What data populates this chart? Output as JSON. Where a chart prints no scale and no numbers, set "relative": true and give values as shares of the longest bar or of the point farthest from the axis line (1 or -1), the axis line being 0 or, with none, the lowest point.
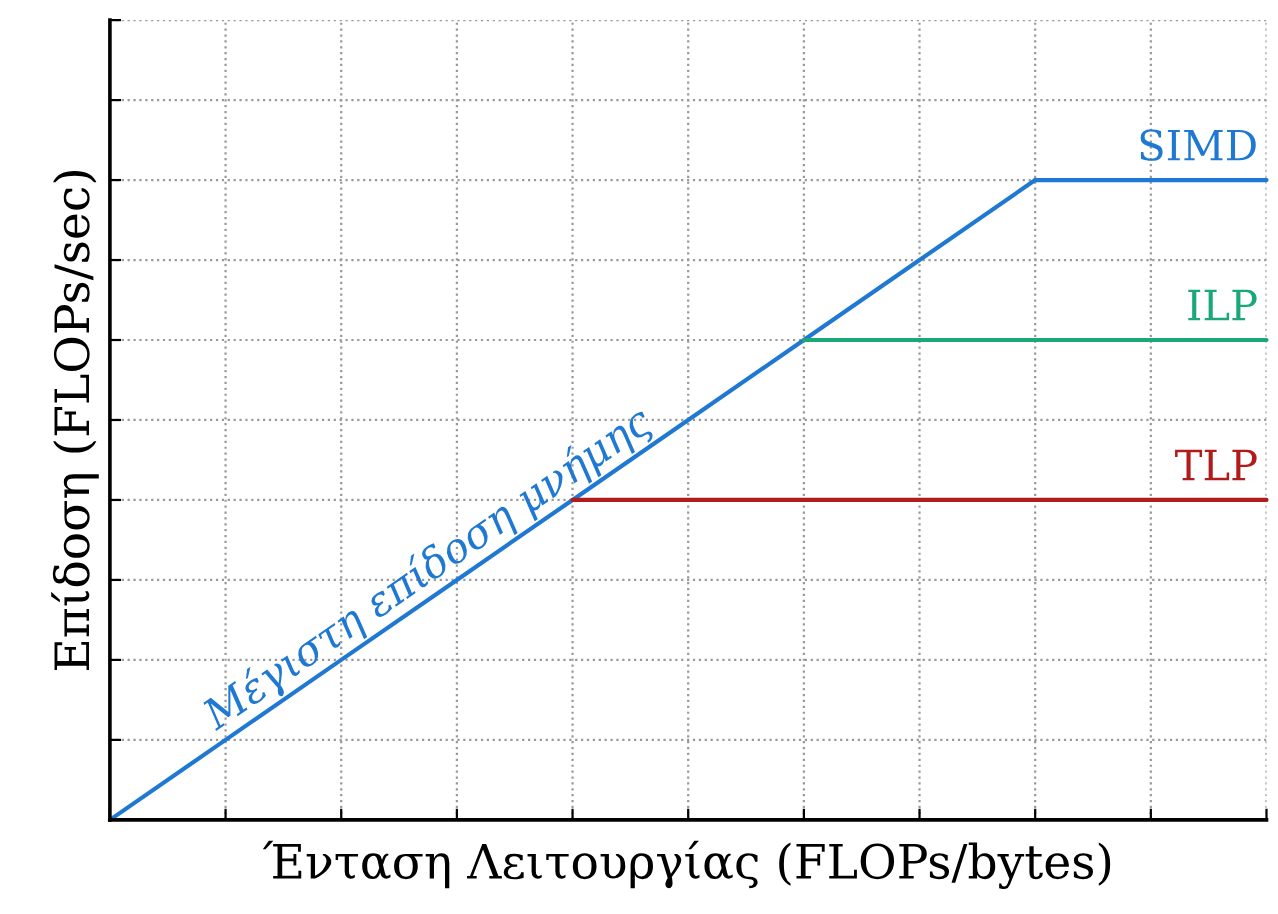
{
  "chart_data": {
    "type": "line",
    "relative": true,
    "xlabel": "Ένταση Λειτουργίας (FLOPs/bytes)",
    "ylabel": "Επίδοση (FLOPs/sec)",
    "categories": [
      null,
      null,
      null,
      null,
      null,
      null,
      null,
      null,
      null,
      null,
      null
    ],
    "grid": true,
    "marker": "none",
    "line_style": "solid",
    "series": [
      {
        "name": "Μέγιστη επίδοση μνήμης",
        "color": "#1f78d1",
        "values": [
          0,
          0.125,
          0.25,
          0.375,
          0.5,
          0.625,
          0.75,
          0.875,
          1,
          null,
          null
        ]
      },
      {
        "name": "SIMD",
        "color": "#1f78d1",
        "values": [
          null,
          null,
          null,
          null,
          null,
          null,
          null,
          null,
          1,
          1,
          1
        ]
      },
      {
        "name": "ILP",
        "color": "#1aa878",
        "values": [
          null,
          null,
          null,
          null,
          null,
          null,
          0.75,
          0.75,
          0.75,
          0.75,
          0.75
        ]
      },
      {
        "name": "TLP",
        "color": "#b01c1c",
        "values": [
          null,
          null,
          null,
          null,
          0.5,
          0.5,
          0.5,
          0.5,
          0.5,
          0.5,
          0.5
        ]
      }
    ]
  }
}
